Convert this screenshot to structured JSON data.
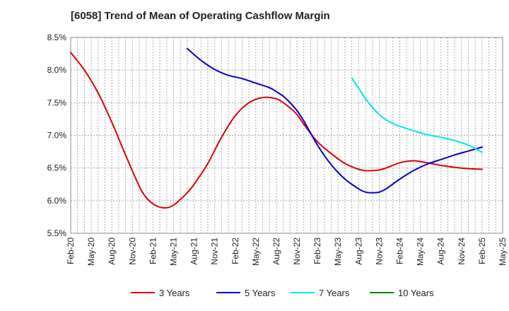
{
  "chart_data": {
    "type": "line",
    "title": "[6058]  Trend of Mean of Operating Cashflow Margin",
    "xlabel": "",
    "ylabel": "",
    "ylim": [
      5.5,
      8.5
    ],
    "yticks": [
      5.5,
      6.0,
      6.5,
      7.0,
      7.5,
      8.0,
      8.5
    ],
    "ytick_labels": [
      "5.5%",
      "6.0%",
      "6.5%",
      "7.0%",
      "7.5%",
      "8.0%",
      "8.5%"
    ],
    "xlim": [
      0,
      63
    ],
    "xticks": [
      0,
      3,
      6,
      9,
      12,
      15,
      18,
      21,
      24,
      27,
      30,
      33,
      36,
      39,
      42,
      45,
      48,
      51,
      54,
      57,
      60,
      63
    ],
    "xtick_labels": [
      "Feb-20",
      "May-20",
      "Aug-20",
      "Nov-20",
      "Feb-21",
      "May-21",
      "Aug-21",
      "Nov-21",
      "Feb-22",
      "May-22",
      "Aug-22",
      "Nov-22",
      "Feb-23",
      "May-23",
      "Aug-23",
      "Nov-23",
      "Feb-24",
      "May-24",
      "Aug-24",
      "Nov-24",
      "Feb-25",
      "May-25"
    ],
    "grid": true,
    "legend_position": "bottom",
    "series": [
      {
        "name": "3 Years",
        "color": "#dd0000",
        "x": [
          0,
          2,
          4,
          6,
          8,
          10,
          11,
          12,
          13,
          14,
          15,
          16,
          17,
          18,
          20,
          22,
          24,
          26,
          28,
          30,
          31,
          32,
          33,
          34,
          36,
          38,
          40,
          42,
          43,
          44,
          45,
          46,
          48,
          50,
          52,
          54,
          56,
          58,
          60
        ],
        "values": [
          8.27,
          8.0,
          7.65,
          7.2,
          6.7,
          6.22,
          6.05,
          5.95,
          5.9,
          5.89,
          5.93,
          6.02,
          6.12,
          6.25,
          6.57,
          6.97,
          7.3,
          7.5,
          7.58,
          7.56,
          7.5,
          7.42,
          7.32,
          7.17,
          6.9,
          6.72,
          6.57,
          6.48,
          6.46,
          6.46,
          6.47,
          6.5,
          6.58,
          6.61,
          6.58,
          6.54,
          6.51,
          6.49,
          6.48
        ]
      },
      {
        "name": "5 Years",
        "color": "#0000cc",
        "x": [
          17,
          19,
          21,
          23,
          25,
          27,
          29,
          30,
          31,
          32,
          33,
          34,
          36,
          38,
          40,
          42,
          43,
          44,
          45,
          46,
          48,
          50,
          52,
          54,
          56,
          58,
          60
        ],
        "values": [
          8.33,
          8.15,
          8.01,
          7.92,
          7.87,
          7.8,
          7.73,
          7.67,
          7.6,
          7.5,
          7.38,
          7.22,
          6.85,
          6.55,
          6.33,
          6.18,
          6.13,
          6.12,
          6.13,
          6.18,
          6.33,
          6.46,
          6.56,
          6.63,
          6.7,
          6.76,
          6.82
        ]
      },
      {
        "name": "7 Years",
        "color": "#00e5e5",
        "x": [
          41,
          42,
          43,
          44,
          45,
          46,
          47,
          48,
          50,
          52,
          54,
          56,
          58,
          60
        ],
        "values": [
          7.88,
          7.72,
          7.56,
          7.43,
          7.32,
          7.24,
          7.18,
          7.14,
          7.07,
          7.01,
          6.97,
          6.92,
          6.85,
          6.74
        ]
      },
      {
        "name": "10 Years",
        "color": "#008000",
        "x": [],
        "values": []
      }
    ]
  }
}
